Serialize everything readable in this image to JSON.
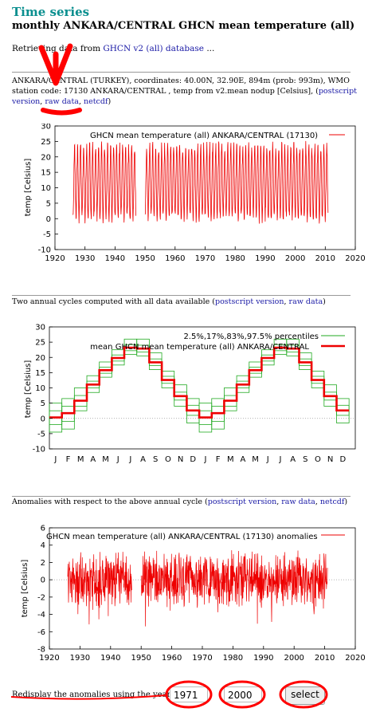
{
  "header": {
    "title": "Time series",
    "subtitle": "monthly ANKARA/CENTRAL GHCN mean temperature (all)",
    "retrieving_prefix": "Retrieving data from ",
    "retrieving_link": "GHCN v2 (all) database",
    "retrieving_suffix": " ..."
  },
  "station": {
    "line1": "ANKARA/CENTRAL (TURKEY), coordinates: 40.00N, 32.90E, 894m (prob: 993m), WMO",
    "line2": "station code: 17130 ANKARA/CENTRAL , temp from v2.mean nodup [Celsius], (",
    "link_postscript": "postscript",
    "link_version": "version",
    "link_raw": "raw data",
    "link_netcdf": "netcdf",
    "sep": ", ",
    "close": ")"
  },
  "cycles_caption": {
    "text": "Two annual cycles computed with all data available (",
    "link_postscript": "postscript version",
    "link_raw": "raw data",
    "sep": ", ",
    "close": ")"
  },
  "anom_caption": {
    "text": "Anomalies with respect to the above annual cycle (",
    "link_postscript": "postscript version",
    "link_raw": "raw data",
    "link_netcdf": "netcdf",
    "sep": ", ",
    "close": ")"
  },
  "form": {
    "label": "Redisplay the anomalies using the years",
    "year_from": "1971",
    "year_to": "2000",
    "button": "select"
  },
  "colors": {
    "series": "#ee0000",
    "percentile": "#22aa22",
    "link": "#1a1aa6",
    "title": "#0a8f8f",
    "annotation": "#ff0000"
  },
  "chart_data": [
    {
      "type": "line",
      "title": "",
      "legend": "GHCN mean temperature (all) ANKARA/CENTRAL (17130)",
      "ylabel": "temp [Celsius]",
      "xlabel": "",
      "x_range": [
        1926,
        2010
      ],
      "xlim": [
        1920,
        2020
      ],
      "ylim": [
        -10,
        30
      ],
      "xticks": [
        "1920",
        "1930",
        "1940",
        "1950",
        "1960",
        "1970",
        "1980",
        "1990",
        "2000",
        "2010",
        "2020"
      ],
      "yticks": [
        "-10",
        "-5",
        "0",
        "5",
        "10",
        "15",
        "20",
        "25",
        "30"
      ],
      "series": [
        {
          "name": "GHCN mean temperature (all) ANKARA/CENTRAL (17130)",
          "summer_max_approx": 24,
          "winter_min_approx": -3
        }
      ]
    },
    {
      "type": "line",
      "title": "",
      "ylabel": "temp [Celsius]",
      "ylim": [
        -10,
        30
      ],
      "yticks": [
        "-10",
        "-5",
        "0",
        "5",
        "10",
        "15",
        "20",
        "25",
        "30"
      ],
      "categories": [
        "J",
        "F",
        "M",
        "A",
        "M",
        "J",
        "J",
        "A",
        "S",
        "O",
        "N",
        "D",
        "J",
        "F",
        "M",
        "A",
        "M",
        "J",
        "J",
        "A",
        "S",
        "O",
        "N",
        "D"
      ],
      "series": [
        {
          "name": "mean GHCN mean temperature (all) ANKARA/CENTRAL",
          "values": [
            0.3,
            1.7,
            5.8,
            11.1,
            15.8,
            19.8,
            23.2,
            22.9,
            18.4,
            12.6,
            7.3,
            2.6,
            0.3,
            1.7,
            5.8,
            11.1,
            15.8,
            19.8,
            23.2,
            22.9,
            18.4,
            12.6,
            7.3,
            2.6
          ]
        },
        {
          "name": "2.5%,17%,83%,97.5% percentiles",
          "p025": [
            -4.5,
            -3.5,
            2.5,
            8.5,
            13.5,
            17.5,
            21.0,
            20.5,
            16.0,
            10.0,
            4.0,
            -1.5,
            -4.5,
            -3.5,
            2.5,
            8.5,
            13.5,
            17.5,
            21.0,
            20.5,
            16.0,
            10.0,
            4.0,
            -1.5
          ],
          "p17": [
            -2.0,
            -1.0,
            4.0,
            10.0,
            14.8,
            18.8,
            22.2,
            21.8,
            17.3,
            11.5,
            6.0,
            1.0,
            -2.0,
            -1.0,
            4.0,
            10.0,
            14.8,
            18.8,
            22.2,
            21.8,
            17.3,
            11.5,
            6.0,
            1.0
          ],
          "p83": [
            2.5,
            4.0,
            7.5,
            12.2,
            16.8,
            20.8,
            24.2,
            24.0,
            19.5,
            13.8,
            8.6,
            4.3,
            2.5,
            4.0,
            7.5,
            12.2,
            16.8,
            20.8,
            24.2,
            24.0,
            19.5,
            13.8,
            8.6,
            4.3
          ],
          "p975": [
            5.0,
            6.5,
            10.0,
            14.0,
            18.5,
            22.5,
            26.0,
            26.0,
            21.5,
            15.5,
            11.0,
            6.5,
            5.0,
            6.5,
            10.0,
            14.0,
            18.5,
            22.5,
            26.0,
            26.0,
            21.5,
            15.5,
            11.0,
            6.5
          ]
        }
      ]
    },
    {
      "type": "line",
      "title": "",
      "legend": "GHCN mean temperature (all) ANKARA/CENTRAL (17130) anomalies",
      "ylabel": "temp [Celsius]",
      "xlim": [
        1920,
        2020
      ],
      "x_range": [
        1926,
        2010
      ],
      "ylim": [
        -8,
        6
      ],
      "xticks": [
        "1920",
        "1930",
        "1940",
        "1950",
        "1960",
        "1970",
        "1980",
        "1990",
        "2000",
        "2010",
        "2020"
      ],
      "yticks": [
        "-8",
        "-6",
        "-4",
        "-2",
        "0",
        "2",
        "4",
        "6"
      ],
      "series": [
        {
          "name": "GHCN mean temperature (all) ANKARA/CENTRAL (17130) anomalies",
          "typical_range": [
            -3,
            3
          ],
          "min_approx": -7,
          "max_approx": 4.5
        }
      ]
    }
  ]
}
